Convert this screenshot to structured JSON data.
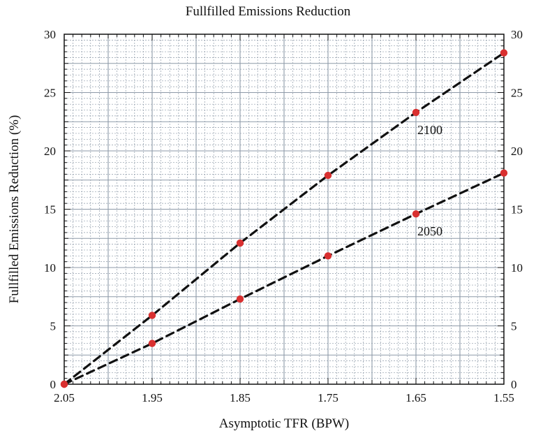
{
  "chart_data": {
    "type": "line",
    "title": "Fullfilled Emissions Reduction",
    "xlabel": "Asymptotic TFR (BPW)",
    "ylabel": "Fullfilled Emissions Reduction (%)",
    "xlim": [
      2.05,
      1.55
    ],
    "ylim": [
      0,
      30
    ],
    "x_reversed": true,
    "x_ticks": [
      2.05,
      1.95,
      1.85,
      1.75,
      1.65,
      1.55
    ],
    "x_tick_labels": [
      "2.05",
      "1.95",
      "1.85",
      "1.75",
      "1.65",
      "1.55"
    ],
    "y_ticks": [
      0,
      5,
      10,
      15,
      20,
      25,
      30
    ],
    "y_tick_labels": [
      "0",
      "5",
      "10",
      "15",
      "20",
      "25",
      "30"
    ],
    "y_axis_right_labels": true,
    "grid": true,
    "x": [
      2.05,
      1.95,
      1.85,
      1.75,
      1.65,
      1.55
    ],
    "series": [
      {
        "name": "2100",
        "values": [
          0,
          5.9,
          12.1,
          17.9,
          23.3,
          28.4
        ],
        "line_style": "dashed",
        "line_color": "#111111",
        "marker_color": "#d93030"
      },
      {
        "name": "2050",
        "values": [
          0,
          3.5,
          7.3,
          11.0,
          14.6,
          18.1
        ],
        "line_style": "dashed",
        "line_color": "#111111",
        "marker_color": "#d93030"
      }
    ],
    "annotations": [
      "2100",
      "2050"
    ],
    "colors": {
      "grid": "#8e9aa8",
      "marker": "#d93030",
      "line": "#111111"
    }
  }
}
